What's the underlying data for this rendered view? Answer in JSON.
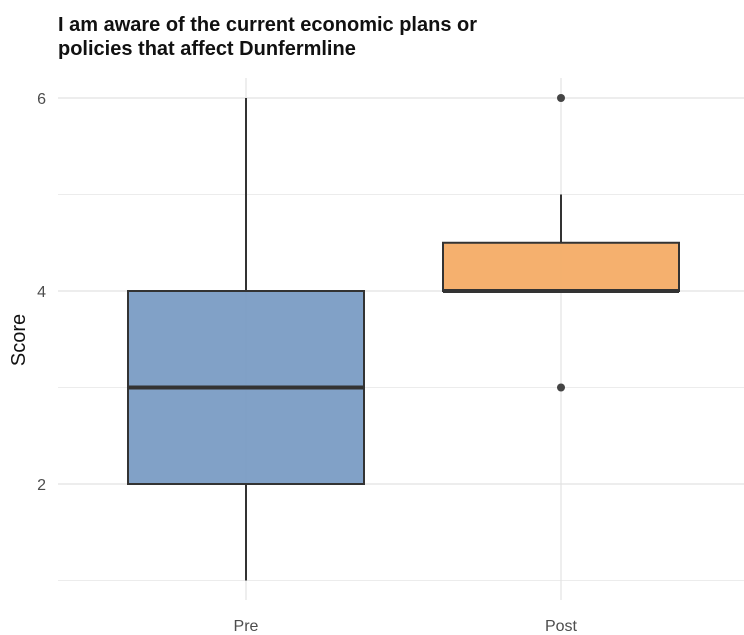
{
  "chart_data": {
    "type": "boxplot",
    "title_lines": [
      "I am aware of the current economic plans or",
      "policies that affect Dunfermline"
    ],
    "xlabel": "",
    "ylabel": "Score",
    "categories": [
      "Pre",
      "Post"
    ],
    "y_ticks": [
      2,
      4,
      6
    ],
    "ylim": [
      0.9,
      6.2
    ],
    "grid": true,
    "boxes": [
      {
        "name": "Pre",
        "whisker_low": 1,
        "q1": 2,
        "median": 3,
        "q3": 4,
        "whisker_high": 6,
        "outliers": [],
        "color": "#7a9cc4"
      },
      {
        "name": "Post",
        "whisker_low": 4,
        "q1": 4,
        "median": 4,
        "q3": 4.5,
        "whisker_high": 5,
        "outliers": [
          3,
          6
        ],
        "color": "#f4ac66"
      }
    ]
  }
}
